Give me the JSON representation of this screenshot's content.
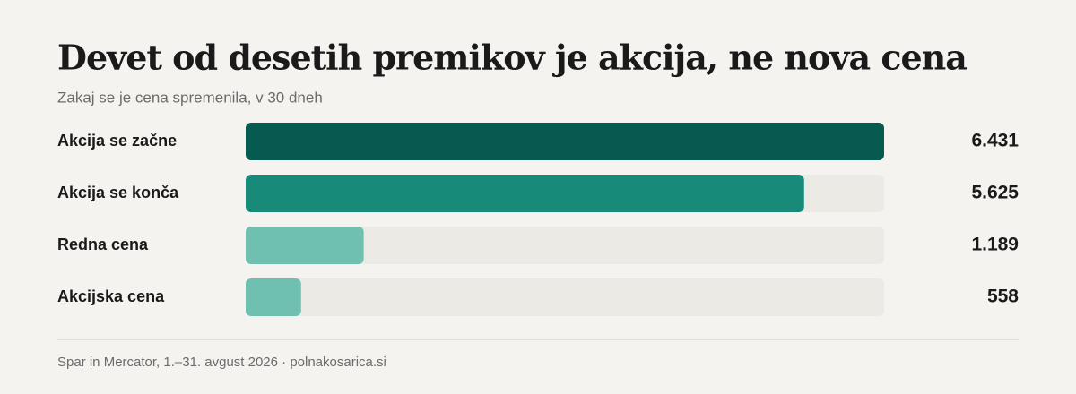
{
  "chart_data": {
    "type": "hbar",
    "title": "Devet od desetih premikov je akcija, ne nova cena",
    "subtitle": "Zakaj se je cena spremenila, v 30 dneh",
    "categories": [
      "Akcija se začne",
      "Akcija se konča",
      "Redna cena",
      "Akcijska cena"
    ],
    "values": [
      6431,
      5625,
      1189,
      558
    ],
    "value_labels": [
      "6.431",
      "5.625",
      "1.189",
      "558"
    ],
    "colors": [
      "#065a4f",
      "#178a7a",
      "#6fc0b0",
      "#6fc0b0"
    ],
    "source": "Spar in Mercator, 1.–31. avgust 2026 · polnakosarica.si"
  }
}
